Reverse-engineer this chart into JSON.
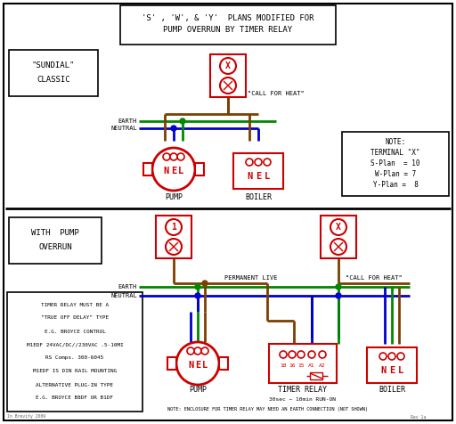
{
  "title_line1": "'S' , 'W', & 'Y'  PLANS MODIFIED FOR",
  "title_line2": "PUMP OVERRUN BY TIMER RELAY",
  "bg_color": "#ffffff",
  "border_color": "#000000",
  "red_color": "#cc0000",
  "green_color": "#008800",
  "blue_color": "#0000cc",
  "brown_color": "#7B3F00",
  "gray_color": "#666666",
  "note_lines": [
    "TIMER RELAY MUST BE A",
    "\"TRUE OFF DELAY\" TYPE",
    "E.G. BROYCE CONTROL",
    "M1EDF 24VAC/DC//230VAC .5-10MI",
    "RS Comps. 300-6045",
    "M1EDF IS DIN RAIL MOUNTING",
    "ALTERNATIVE PLUG-IN TYPE",
    "E.G. BROYCE B8DF OR B1DF"
  ]
}
